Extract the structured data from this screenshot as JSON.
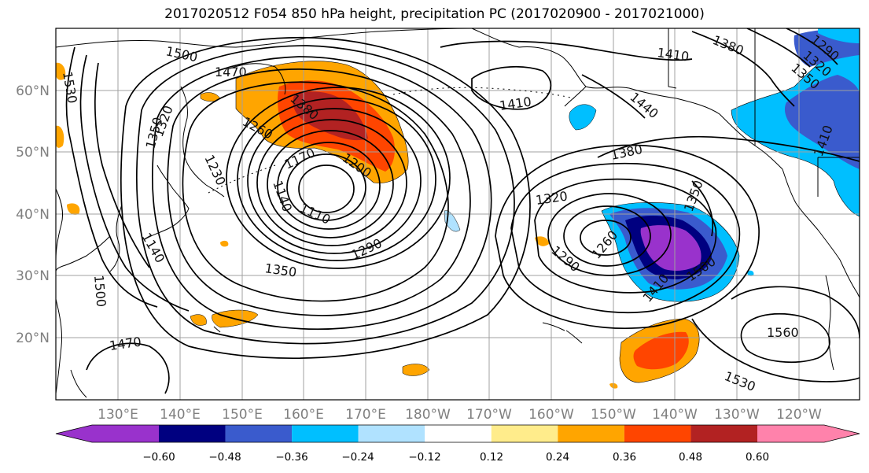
{
  "title": "2017020512 F054 850 hPa height, precipitation PC (2017020900 - 2017021000)",
  "axes": {
    "lat_labels": [
      "60°N",
      "50°N",
      "40°N",
      "30°N",
      "20°N"
    ],
    "lon_labels": [
      "130°E",
      "140°E",
      "150°E",
      "160°E",
      "170°E",
      "180°W",
      "170°W",
      "160°W",
      "150°W",
      "140°W",
      "130°W",
      "120°W"
    ],
    "grid": true
  },
  "colorbar": {
    "ticks": [
      "−0.60",
      "−0.48",
      "−0.36",
      "−0.24",
      "−0.12",
      "0.12",
      "0.24",
      "0.36",
      "0.48",
      "0.60"
    ],
    "colors": [
      "#9932cc",
      "#000080",
      "#3a5bcd",
      "#00bfff",
      "#b0e2ff",
      "#ffffff",
      "#ffec8b",
      "#ffa500",
      "#ff4500",
      "#b22222",
      "#ff82ab"
    ],
    "extend": "both"
  },
  "contour_labels": [
    "1500",
    "1470",
    "1530",
    "1350",
    "1320",
    "1380",
    "1260",
    "1230",
    "1170",
    "1140",
    "1110",
    "1200",
    "1290",
    "1350",
    "1140",
    "1500",
    "1470",
    "1410",
    "1410",
    "1380",
    "1440",
    "1320",
    "1290",
    "1260",
    "1350",
    "1500",
    "1410",
    "1560",
    "1530",
    "1380",
    "1410",
    "1290",
    "1320",
    "1350"
  ]
}
